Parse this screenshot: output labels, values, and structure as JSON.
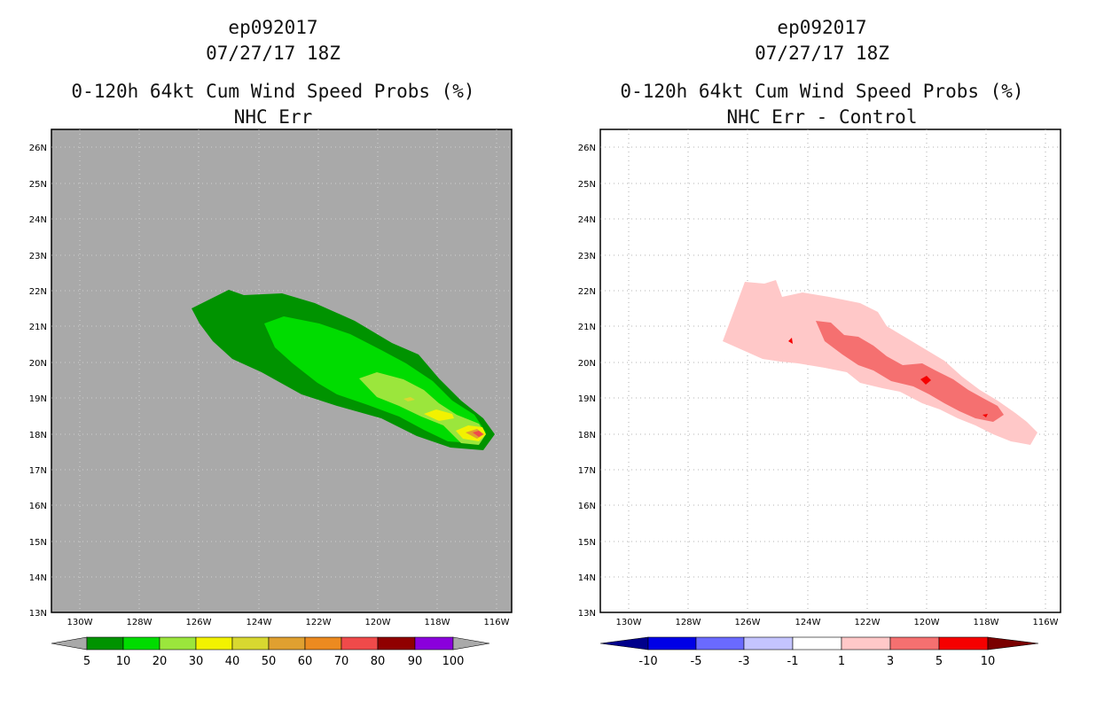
{
  "left_panel": {
    "storm_id": "ep092017",
    "datetime": "07/27/17 18Z",
    "title": "0-120h 64kt Cum Wind Speed Probs (%)",
    "subtitle": "NHC Err",
    "background_color": "#a9a9a9",
    "colorbar": {
      "labels": [
        "5",
        "10",
        "20",
        "30",
        "40",
        "50",
        "60",
        "70",
        "80",
        "90",
        "100"
      ],
      "colors": [
        "#009300",
        "#00dc00",
        "#9be63c",
        "#f2f200",
        "#d8d830",
        "#e0a030",
        "#ec8a20",
        "#f04a4a",
        "#900000",
        "#8a00dc"
      ]
    }
  },
  "right_panel": {
    "storm_id": "ep092017",
    "datetime": "07/27/17 18Z",
    "title": "0-120h 64kt Cum Wind Speed Probs (%)",
    "subtitle": "NHC Err - Control",
    "colorbar": {
      "labels": [
        "-10",
        "-5",
        "-3",
        "-1",
        "1",
        "3",
        "5",
        "10"
      ],
      "colors": [
        "#0000e6",
        "#6a6aff",
        "#c4c4ff",
        "#ffffff",
        "#ffc8c8",
        "#f57070",
        "#f50000"
      ],
      "arrow_left_color": "#00008b",
      "arrow_right_color": "#7a0000"
    }
  },
  "axes": {
    "lat_labels": [
      "26N",
      "25N",
      "24N",
      "23N",
      "22N",
      "21N",
      "20N",
      "19N",
      "18N",
      "17N",
      "16N",
      "15N",
      "14N",
      "13N"
    ],
    "lon_labels": [
      "130W",
      "128W",
      "126W",
      "124W",
      "122W",
      "120W",
      "118W",
      "116W"
    ]
  }
}
